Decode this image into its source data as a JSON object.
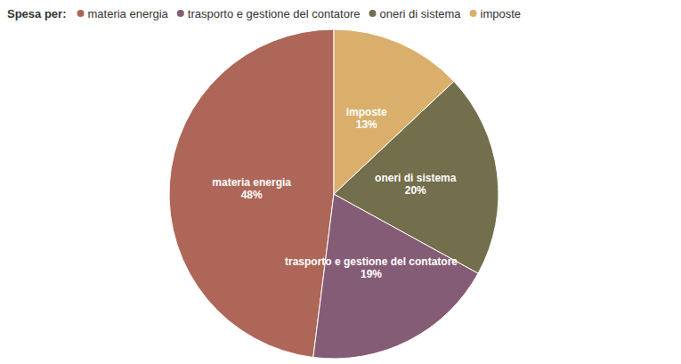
{
  "chart_data": {
    "type": "pie",
    "title": "Spesa per:",
    "categories": [
      "materia energia",
      "trasporto e gestione del contatore",
      "oneri di sistema",
      "imposte"
    ],
    "values": [
      48,
      19,
      20,
      13
    ],
    "value_labels": [
      "48%",
      "19%",
      "20%",
      "13%"
    ],
    "colors": [
      "#ad6657",
      "#855c75",
      "#736f4c",
      "#d9af6b"
    ],
    "legend": "top-left",
    "data_labels": true
  }
}
